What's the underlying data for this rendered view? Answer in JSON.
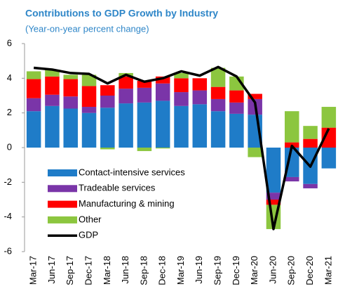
{
  "chart_data": {
    "type": "bar",
    "stacked": true,
    "title": "Contributions to GDP Growth by Industry",
    "subtitle": "(Year-on-year percent change)",
    "categories": [
      "Mar-17",
      "Jun-17",
      "Sep-17",
      "Dec-17",
      "Mar-18",
      "Jun-18",
      "Sep-18",
      "Dec-18",
      "Mar-19",
      "Jun-19",
      "Sep-19",
      "Dec-19",
      "Mar-20",
      "Jun-20",
      "Sep-20",
      "Dec-20",
      "Mar-21"
    ],
    "series": [
      {
        "name": "Contact-intensive services",
        "color": "#1f7cc8",
        "type": "bar",
        "values": [
          2.1,
          2.4,
          2.25,
          2.0,
          2.3,
          2.55,
          2.6,
          2.7,
          2.4,
          2.5,
          2.1,
          1.95,
          1.9,
          -2.6,
          -1.7,
          -2.1,
          -1.2
        ]
      },
      {
        "name": "Tradeable services",
        "color": "#7a35a8",
        "type": "bar",
        "values": [
          0.75,
          0.65,
          0.7,
          0.35,
          0.7,
          0.85,
          0.85,
          1.0,
          0.8,
          0.8,
          0.7,
          0.65,
          0.9,
          -0.4,
          -0.25,
          -0.25,
          0
        ]
      },
      {
        "name": "Manufacturing & mining",
        "color": "#ff0000",
        "type": "bar",
        "values": [
          1.1,
          1.05,
          1.0,
          1.2,
          0.6,
          0.7,
          0.4,
          0.4,
          0.8,
          0.7,
          0.7,
          0.7,
          0.3,
          -0.3,
          0.3,
          0.5,
          1.15
        ]
      },
      {
        "name": "Other",
        "color": "#8cc63f",
        "type": "bar",
        "values": [
          0.45,
          0.4,
          0.25,
          0.65,
          -0.1,
          0.2,
          -0.2,
          -0.05,
          0.3,
          0,
          1.1,
          0.8,
          -0.55,
          -1.4,
          1.8,
          0.75,
          1.2
        ]
      },
      {
        "name": "GDP",
        "color": "#000000",
        "type": "line",
        "values": [
          4.6,
          4.5,
          4.3,
          4.25,
          3.7,
          4.2,
          3.8,
          4.0,
          4.4,
          4.15,
          4.65,
          4.1,
          2.6,
          -4.7,
          0.1,
          -1.1,
          1.1
        ]
      }
    ],
    "ylim": [
      -6,
      6
    ],
    "yticks": [
      -6,
      -4,
      -2,
      0,
      2,
      4,
      6
    ],
    "legend": "lower left",
    "grid": false
  }
}
